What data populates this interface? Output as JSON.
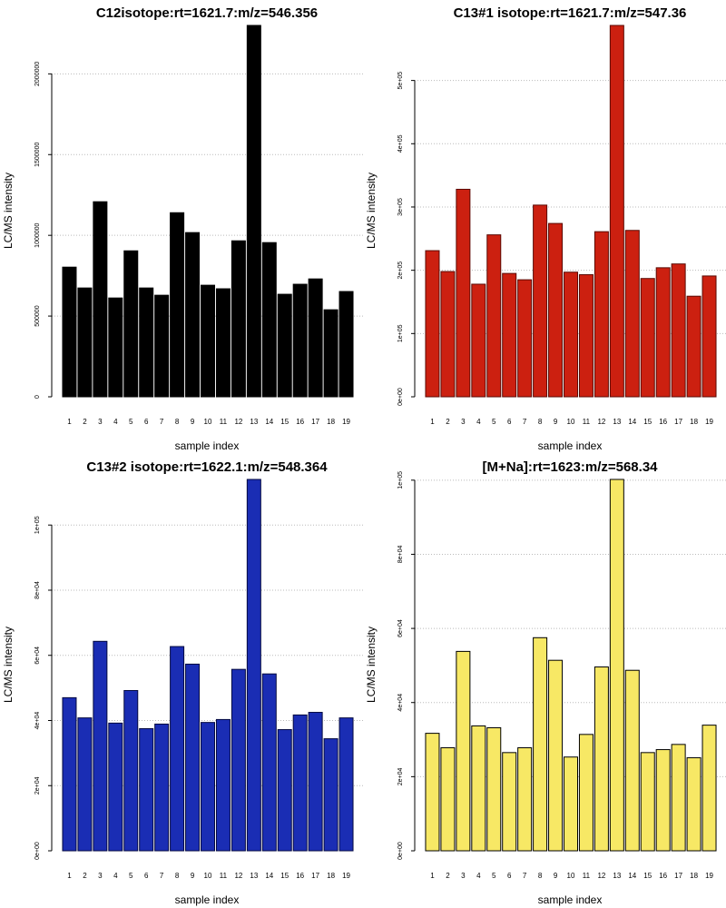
{
  "chart_data": [
    {
      "type": "bar",
      "title": "C12isotope:rt=1621.7:m/z=546.356",
      "xlabel": "sample index",
      "ylabel": "LC/MS intensity",
      "categories": [
        "1",
        "2",
        "3",
        "4",
        "5",
        "6",
        "7",
        "8",
        "9",
        "10",
        "11",
        "12",
        "13",
        "14",
        "15",
        "16",
        "17",
        "18",
        "19"
      ],
      "values": [
        803000,
        674000,
        1208000,
        612000,
        904000,
        674000,
        629000,
        1140000,
        1017000,
        691000,
        669000,
        966000,
        2300000,
        955000,
        635000,
        697000,
        730000,
        539000,
        652000
      ],
      "color": "#000000",
      "edgecolor": "#000000",
      "ylim": [
        0,
        2300000
      ],
      "yticks": [
        0,
        500000,
        1000000,
        1500000,
        2000000
      ],
      "grid": true
    },
    {
      "type": "bar",
      "title": "C13#1 isotope:rt=1621.7:m/z=547.36",
      "xlabel": "sample index",
      "ylabel": "LC/MS intensity",
      "categories": [
        "1",
        "2",
        "3",
        "4",
        "5",
        "6",
        "7",
        "8",
        "9",
        "10",
        "11",
        "12",
        "13",
        "14",
        "15",
        "16",
        "17",
        "18",
        "19"
      ],
      "values": [
        231000,
        198000,
        328000,
        178000,
        256000,
        195000,
        185000,
        303000,
        274000,
        197000,
        193000,
        261000,
        587000,
        263000,
        187000,
        204000,
        210000,
        159000,
        191000
      ],
      "color": "#cc2010",
      "edgecolor": "#5a0a04",
      "ylim": [
        0,
        587000
      ],
      "yticks": [
        {
          "value": 0,
          "label": "0e+00"
        },
        {
          "value": 100000,
          "label": "1e+05"
        },
        {
          "value": 200000,
          "label": "2e+05"
        },
        {
          "value": 300000,
          "label": "3e+05"
        },
        {
          "value": 400000,
          "label": "4e+05"
        },
        {
          "value": 500000,
          "label": "5e+05"
        }
      ],
      "grid": true
    },
    {
      "type": "bar",
      "title": "C13#2 isotope:rt=1622.1:m/z=548.364",
      "xlabel": "sample index",
      "ylabel": "LC/MS intensity",
      "categories": [
        "1",
        "2",
        "3",
        "4",
        "5",
        "6",
        "7",
        "8",
        "9",
        "10",
        "11",
        "12",
        "13",
        "14",
        "15",
        "16",
        "17",
        "18",
        "19"
      ],
      "values": [
        47000,
        40800,
        64300,
        39200,
        49200,
        37500,
        38900,
        62700,
        57300,
        39400,
        40300,
        55700,
        114000,
        54300,
        37200,
        41700,
        42500,
        34400,
        40800
      ],
      "color": "#1a2db4",
      "edgecolor": "#050a40",
      "ylim": [
        0,
        114000
      ],
      "yticks": [
        {
          "value": 0,
          "label": "0e+00"
        },
        {
          "value": 20000,
          "label": "2e+04"
        },
        {
          "value": 40000,
          "label": "4e+04"
        },
        {
          "value": 60000,
          "label": "6e+04"
        },
        {
          "value": 80000,
          "label": "8e+04"
        },
        {
          "value": 100000,
          "label": "1e+05"
        }
      ],
      "grid": true
    },
    {
      "type": "bar",
      "title": "[M+Na]:rt=1623:m/z=568.34",
      "xlabel": "sample index",
      "ylabel": "LC/MS intensity",
      "categories": [
        "1",
        "2",
        "3",
        "4",
        "5",
        "6",
        "7",
        "8",
        "9",
        "10",
        "11",
        "12",
        "13",
        "14",
        "15",
        "16",
        "17",
        "18",
        "19"
      ],
      "values": [
        31700,
        27800,
        53800,
        33700,
        33200,
        26500,
        27800,
        57500,
        51400,
        25300,
        31400,
        49600,
        100200,
        48700,
        26500,
        27300,
        28700,
        25100,
        33900
      ],
      "color": "#f7e865",
      "edgecolor": "#000000",
      "ylim": [
        0,
        100200
      ],
      "yticks": [
        {
          "value": 0,
          "label": "0e+00"
        },
        {
          "value": 20000,
          "label": "2e+04"
        },
        {
          "value": 40000,
          "label": "4e+04"
        },
        {
          "value": 60000,
          "label": "6e+04"
        },
        {
          "value": 80000,
          "label": "8e+04"
        },
        {
          "value": 100000,
          "label": "1e+05"
        }
      ],
      "grid": true
    }
  ]
}
